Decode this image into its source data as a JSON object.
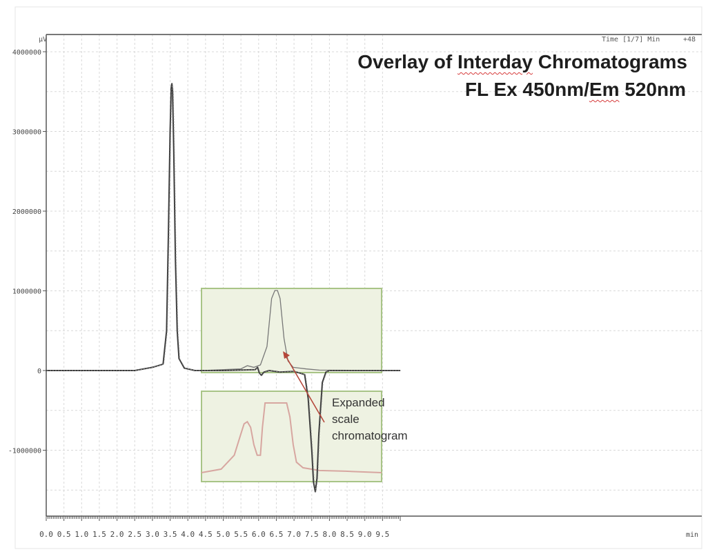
{
  "chart_data": {
    "type": "line",
    "title_line1_parts": [
      "Overlay of ",
      "Interday",
      " Chromatograms"
    ],
    "title_line2_parts": [
      "FL Ex 450nm/",
      "Em",
      " 520nm"
    ],
    "ylabel": "µV",
    "xlabel": "min",
    "header_labels": [
      "Time [1/7] Min",
      "+48"
    ],
    "xlim": [
      0.0,
      10.0
    ],
    "ylim": [
      -1800000,
      4100000
    ],
    "x_ticks": [
      "0.0",
      "0.5",
      "1.0",
      "1.5",
      "2.0",
      "2.5",
      "3.0",
      "3.5",
      "4.0",
      "4.5",
      "5.0",
      "5.5",
      "6.0",
      "6.5",
      "7.0",
      "7.5",
      "8.0",
      "8.5",
      "9.0",
      "9.5"
    ],
    "y_ticks": [
      {
        "value": 4000000,
        "label": "4000000"
      },
      {
        "value": 3000000,
        "label": "3000000"
      },
      {
        "value": 2000000,
        "label": "2000000"
      },
      {
        "value": 1000000,
        "label": "1000000"
      },
      {
        "value": 0,
        "label": "0"
      },
      {
        "value": -1000000,
        "label": "-1000000"
      }
    ],
    "grid": true,
    "series": [
      {
        "color": "#3a3a3a",
        "x": [
          0.0,
          2.0,
          2.5,
          3.0,
          3.3,
          3.4,
          3.45,
          3.5,
          3.53,
          3.55,
          3.57,
          3.6,
          3.65,
          3.7,
          3.75,
          3.9,
          4.2,
          5.0,
          5.9,
          5.97,
          6.02,
          6.08,
          6.15,
          6.3,
          6.6,
          7.0,
          7.3,
          7.4,
          7.5,
          7.55,
          7.6,
          7.65,
          7.7,
          7.8,
          7.9,
          8.0,
          9.0,
          10.0
        ],
        "y": [
          0,
          0,
          0,
          40000,
          80000,
          500000,
          1700000,
          3000000,
          3550000,
          3600000,
          3500000,
          2800000,
          1400000,
          500000,
          150000,
          30000,
          0,
          0,
          10000,
          40000,
          -30000,
          -60000,
          -20000,
          0,
          -20000,
          -10000,
          -50000,
          -350000,
          -1000000,
          -1400000,
          -1520000,
          -1350000,
          -800000,
          -150000,
          -20000,
          0,
          0,
          0
        ]
      }
    ],
    "inset_upper": {
      "x": [
        2.4,
        5.15
      ],
      "y": [
        0,
        1000000
      ],
      "series_x": [
        2.4,
        3.0,
        3.1,
        3.2,
        3.3,
        3.4,
        3.47,
        3.52,
        3.56,
        3.6,
        3.66,
        3.72,
        3.8,
        3.9,
        4.0,
        4.2,
        5.15
      ],
      "series_y": [
        0,
        20000,
        60000,
        40000,
        70000,
        300000,
        900000,
        1000000,
        1000000,
        900000,
        400000,
        120000,
        40000,
        30000,
        20000,
        5000,
        0
      ]
    },
    "inset_lower": {
      "series_x": [
        2.4,
        2.7,
        2.9,
        3.0,
        3.05,
        3.1,
        3.15,
        3.2,
        3.25,
        3.3,
        3.33,
        3.37,
        3.42,
        3.7,
        3.75,
        3.8,
        3.85,
        3.95,
        4.2,
        4.6,
        5.15
      ],
      "series_y": [
        0.05,
        0.1,
        0.3,
        0.6,
        0.75,
        0.78,
        0.7,
        0.45,
        0.3,
        0.3,
        0.7,
        1.05,
        1.05,
        1.05,
        0.85,
        0.45,
        0.2,
        0.12,
        0.08,
        0.07,
        0.05
      ]
    },
    "annotation": {
      "lines": [
        "Expanded",
        "scale",
        "chromatogram"
      ]
    }
  }
}
